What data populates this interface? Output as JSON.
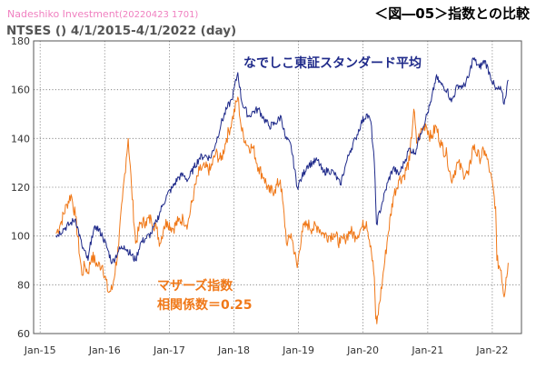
{
  "header": {
    "brand": "Nadeshiko Investment",
    "stamp": "(20220423 1701)",
    "figure_title": "＜図―05＞指数との比較",
    "chart_title": "NTSES () 4/1/2015-4/1/2022 (day)"
  },
  "colors": {
    "brand": "#f080c0",
    "standard": "#1f2a8a",
    "mothers": "#f07818",
    "grid": "#777777",
    "axis_text": "#333333"
  },
  "chart_data": {
    "type": "line",
    "title": "NTSES () 4/1/2015-4/1/2022 (day)",
    "x_range": [
      "2015-04-01",
      "2022-04-01"
    ],
    "ylim": [
      60,
      180
    ],
    "y_ticks": [
      60,
      80,
      100,
      120,
      140,
      160,
      180
    ],
    "x_ticks": [
      "Jan-15",
      "Jan-16",
      "Jan-17",
      "Jan-18",
      "Jan-19",
      "Jan-20",
      "Jan-21",
      "Jan-22"
    ],
    "grid": "dotted",
    "series": [
      {
        "name": "なでしこ東証スタンダード平均",
        "color": "#1f2a8a",
        "points": [
          [
            "2015-04-01",
            100
          ],
          [
            "2015-05-15",
            103
          ],
          [
            "2015-06-20",
            105
          ],
          [
            "2015-07-20",
            107
          ],
          [
            "2015-08-25",
            96
          ],
          [
            "2015-09-29",
            90
          ],
          [
            "2015-10-20",
            100
          ],
          [
            "2015-11-15",
            104
          ],
          [
            "2015-12-20",
            100
          ],
          [
            "2016-01-20",
            94
          ],
          [
            "2016-02-12",
            89
          ],
          [
            "2016-03-20",
            94
          ],
          [
            "2016-04-20",
            96
          ],
          [
            "2016-06-24",
            90
          ],
          [
            "2016-07-20",
            97
          ],
          [
            "2016-08-20",
            99
          ],
          [
            "2016-09-20",
            101
          ],
          [
            "2016-10-20",
            106
          ],
          [
            "2016-11-20",
            112
          ],
          [
            "2016-12-20",
            117
          ],
          [
            "2017-01-20",
            120
          ],
          [
            "2017-02-20",
            124
          ],
          [
            "2017-03-20",
            125
          ],
          [
            "2017-04-15",
            123
          ],
          [
            "2017-05-20",
            128
          ],
          [
            "2017-06-20",
            132
          ],
          [
            "2017-07-20",
            133
          ],
          [
            "2017-08-20",
            132
          ],
          [
            "2017-09-20",
            138
          ],
          [
            "2017-10-20",
            146
          ],
          [
            "2017-11-20",
            152
          ],
          [
            "2017-12-20",
            156
          ],
          [
            "2018-01-23",
            167
          ],
          [
            "2018-02-14",
            155
          ],
          [
            "2018-03-25",
            149
          ],
          [
            "2018-04-20",
            151
          ],
          [
            "2018-05-20",
            152
          ],
          [
            "2018-06-20",
            148
          ],
          [
            "2018-07-20",
            145
          ],
          [
            "2018-08-20",
            146
          ],
          [
            "2018-09-25",
            149
          ],
          [
            "2018-10-20",
            140
          ],
          [
            "2018-11-20",
            137
          ],
          [
            "2018-12-25",
            120
          ],
          [
            "2019-01-20",
            124
          ],
          [
            "2019-02-20",
            129
          ],
          [
            "2019-03-20",
            130
          ],
          [
            "2019-04-20",
            131
          ],
          [
            "2019-05-20",
            126
          ],
          [
            "2019-06-20",
            127
          ],
          [
            "2019-07-20",
            126
          ],
          [
            "2019-08-25",
            121
          ],
          [
            "2019-09-20",
            128
          ],
          [
            "2019-10-20",
            135
          ],
          [
            "2019-11-20",
            140
          ],
          [
            "2019-12-20",
            146
          ],
          [
            "2020-01-20",
            150
          ],
          [
            "2020-02-14",
            147
          ],
          [
            "2020-03-05",
            130
          ],
          [
            "2020-03-17",
            105
          ],
          [
            "2020-04-20",
            114
          ],
          [
            "2020-05-20",
            122
          ],
          [
            "2020-06-20",
            128
          ],
          [
            "2020-07-20",
            125
          ],
          [
            "2020-08-20",
            130
          ],
          [
            "2020-09-20",
            136
          ],
          [
            "2020-10-20",
            134
          ],
          [
            "2020-11-20",
            142
          ],
          [
            "2020-12-20",
            148
          ],
          [
            "2021-01-20",
            155
          ],
          [
            "2021-02-16",
            165
          ],
          [
            "2021-03-20",
            162
          ],
          [
            "2021-04-20",
            160
          ],
          [
            "2021-05-15",
            155
          ],
          [
            "2021-06-20",
            162
          ],
          [
            "2021-07-20",
            161
          ],
          [
            "2021-08-20",
            165
          ],
          [
            "2021-09-14",
            173
          ],
          [
            "2021-10-20",
            169
          ],
          [
            "2021-11-20",
            172
          ],
          [
            "2021-12-20",
            166
          ],
          [
            "2022-01-20",
            160
          ],
          [
            "2022-02-20",
            160
          ],
          [
            "2022-03-09",
            154
          ],
          [
            "2022-04-01",
            164
          ]
        ]
      },
      {
        "name": "マザーズ指数",
        "color": "#f07818",
        "points": [
          [
            "2015-04-01",
            101
          ],
          [
            "2015-05-01",
            106
          ],
          [
            "2015-06-01",
            113
          ],
          [
            "2015-06-25",
            117
          ],
          [
            "2015-07-20",
            108
          ],
          [
            "2015-08-25",
            84
          ],
          [
            "2015-09-10",
            88
          ],
          [
            "2015-09-29",
            85
          ],
          [
            "2015-10-20",
            92
          ],
          [
            "2015-11-20",
            88
          ],
          [
            "2015-12-20",
            88
          ],
          [
            "2016-01-21",
            77
          ],
          [
            "2016-02-12",
            78
          ],
          [
            "2016-03-20",
            96
          ],
          [
            "2016-04-10",
            115
          ],
          [
            "2016-05-02",
            132
          ],
          [
            "2016-05-13",
            140
          ],
          [
            "2016-06-01",
            120
          ],
          [
            "2016-06-24",
            97
          ],
          [
            "2016-07-20",
            105
          ],
          [
            "2016-08-20",
            106
          ],
          [
            "2016-09-20",
            107
          ],
          [
            "2016-10-20",
            103
          ],
          [
            "2016-11-09",
            97
          ],
          [
            "2016-12-01",
            104
          ],
          [
            "2016-12-20",
            106
          ],
          [
            "2017-01-20",
            103
          ],
          [
            "2017-02-20",
            106
          ],
          [
            "2017-03-20",
            107
          ],
          [
            "2017-04-15",
            105
          ],
          [
            "2017-05-20",
            118
          ],
          [
            "2017-06-20",
            127
          ],
          [
            "2017-07-20",
            128
          ],
          [
            "2017-08-20",
            127
          ],
          [
            "2017-09-20",
            134
          ],
          [
            "2017-10-20",
            131
          ],
          [
            "2017-11-20",
            140
          ],
          [
            "2017-12-20",
            147
          ],
          [
            "2018-01-23",
            157
          ],
          [
            "2018-02-14",
            143
          ],
          [
            "2018-03-20",
            137
          ],
          [
            "2018-04-20",
            136
          ],
          [
            "2018-05-20",
            128
          ],
          [
            "2018-06-20",
            124
          ],
          [
            "2018-07-20",
            118
          ],
          [
            "2018-08-20",
            119
          ],
          [
            "2018-09-20",
            123
          ],
          [
            "2018-10-29",
            96
          ],
          [
            "2018-11-20",
            101
          ],
          [
            "2018-12-25",
            87
          ],
          [
            "2019-01-20",
            102
          ],
          [
            "2019-02-20",
            105
          ],
          [
            "2019-03-20",
            103
          ],
          [
            "2019-04-20",
            104
          ],
          [
            "2019-05-20",
            101
          ],
          [
            "2019-06-20",
            100
          ],
          [
            "2019-07-20",
            101
          ],
          [
            "2019-08-25",
            97
          ],
          [
            "2019-09-20",
            99
          ],
          [
            "2019-10-20",
            102
          ],
          [
            "2019-11-20",
            100
          ],
          [
            "2019-12-20",
            103
          ],
          [
            "2020-01-20",
            106
          ],
          [
            "2020-02-14",
            96
          ],
          [
            "2020-03-05",
            83
          ],
          [
            "2020-03-13",
            66
          ],
          [
            "2020-03-19",
            64
          ],
          [
            "2020-04-20",
            82
          ],
          [
            "2020-05-20",
            100
          ],
          [
            "2020-06-20",
            116
          ],
          [
            "2020-07-20",
            123
          ],
          [
            "2020-08-20",
            125
          ],
          [
            "2020-09-20",
            131
          ],
          [
            "2020-10-14",
            152
          ],
          [
            "2020-10-30",
            138
          ],
          [
            "2020-11-20",
            142
          ],
          [
            "2020-12-20",
            146
          ],
          [
            "2021-01-20",
            140
          ],
          [
            "2021-02-16",
            145
          ],
          [
            "2021-03-20",
            137
          ],
          [
            "2021-04-20",
            133
          ],
          [
            "2021-05-13",
            123
          ],
          [
            "2021-06-20",
            130
          ],
          [
            "2021-07-20",
            126
          ],
          [
            "2021-08-20",
            125
          ],
          [
            "2021-09-14",
            137
          ],
          [
            "2021-10-20",
            132
          ],
          [
            "2021-11-20",
            135
          ],
          [
            "2021-12-20",
            126
          ],
          [
            "2022-01-20",
            112
          ],
          [
            "2022-01-27",
            90
          ],
          [
            "2022-02-20",
            86
          ],
          [
            "2022-03-09",
            75
          ],
          [
            "2022-03-20",
            83
          ],
          [
            "2022-04-01",
            89
          ]
        ]
      }
    ],
    "annotations": [
      {
        "text": "なでしこ東証スタンダード平均",
        "color": "#1f2a8a"
      },
      {
        "text": "マザーズ指数",
        "color": "#f07818"
      },
      {
        "text": "相関係数＝0.25",
        "color": "#f07818"
      }
    ]
  }
}
